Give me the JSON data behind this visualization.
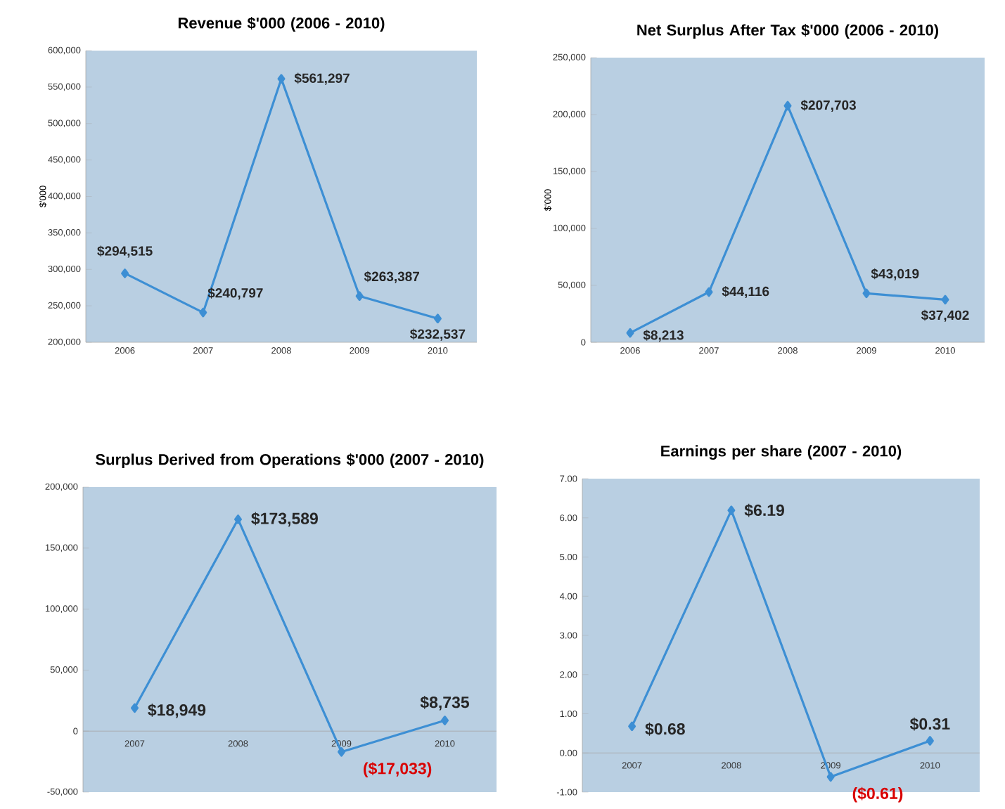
{
  "chart_data": [
    {
      "type": "line",
      "title": "Revenue $'000 (2006 - 2010)",
      "ylabel": "$'000",
      "categories": [
        "2006",
        "2007",
        "2008",
        "2009",
        "2010"
      ],
      "values": [
        294515,
        240797,
        561297,
        263387,
        232537
      ],
      "value_labels": [
        "$294,515",
        "$240,797",
        "$561,297",
        "$263,387",
        "$232,537"
      ],
      "color": "#3d8fd4",
      "marker": "diamond",
      "ylim": [
        200000,
        600000
      ],
      "yticks": [
        {
          "value": 200000,
          "label": "200,000"
        },
        {
          "value": 250000,
          "label": "250,000"
        },
        {
          "value": 300000,
          "label": "300,000"
        },
        {
          "value": 350000,
          "label": "350,000"
        },
        {
          "value": 400000,
          "label": "400,000"
        },
        {
          "value": 450000,
          "label": "450,000"
        },
        {
          "value": 500000,
          "label": "500,000"
        },
        {
          "value": 550000,
          "label": "550,000"
        },
        {
          "value": 600000,
          "label": "600,000"
        }
      ]
    },
    {
      "type": "line",
      "title": "Net Surplus After Tax $'000 (2006 - 2010)",
      "ylabel": "$'000",
      "categories": [
        "2006",
        "2007",
        "2008",
        "2009",
        "2010"
      ],
      "values": [
        8213,
        44116,
        207703,
        43019,
        37402
      ],
      "value_labels": [
        "$8,213",
        "$44,116",
        "$207,703",
        "$43,019",
        "$37,402"
      ],
      "color": "#3d8fd4",
      "marker": "diamond",
      "ylim": [
        0,
        250000
      ],
      "yticks": [
        0,
        {
          "value": 50000,
          "label": "50,000"
        },
        {
          "value": 100000,
          "label": "100,000"
        },
        {
          "value": 150000,
          "label": "150,000"
        },
        {
          "value": 200000,
          "label": "200,000"
        },
        {
          "value": 250000,
          "label": "250,000"
        }
      ]
    },
    {
      "type": "line",
      "title": "Surplus Derived from Operations $'000 (2007 - 2010)",
      "categories": [
        "2007",
        "2008",
        "2009",
        "2010"
      ],
      "values": [
        18949,
        173589,
        -17033,
        8735
      ],
      "value_labels": [
        "$18,949",
        "$173,589",
        "($17,033)",
        "$8,735"
      ],
      "color": "#3d8fd4",
      "marker": "diamond",
      "ylim": [
        -50000,
        200000
      ],
      "yticks": [
        {
          "value": -50000,
          "label": "-50,000"
        },
        0,
        {
          "value": 50000,
          "label": "50,000"
        },
        {
          "value": 100000,
          "label": "100,000"
        },
        {
          "value": 150000,
          "label": "150,000"
        },
        {
          "value": 200000,
          "label": "200,000"
        }
      ]
    },
    {
      "type": "line",
      "title": "Earnings per share (2007 - 2010)",
      "categories": [
        "2007",
        "2008",
        "2009",
        "2010"
      ],
      "values": [
        0.68,
        6.19,
        -0.61,
        0.31
      ],
      "value_labels": [
        "$0.68",
        "$6.19",
        "($0.61)",
        "$0.31"
      ],
      "color": "#3d8fd4",
      "marker": "diamond",
      "ylim": [
        -1,
        7
      ],
      "yticks": [
        {
          "value": -1,
          "label": "-1.00"
        },
        {
          "value": 0,
          "label": "0.00"
        },
        {
          "value": 1,
          "label": "1.00"
        },
        {
          "value": 2,
          "label": "2.00"
        },
        {
          "value": 3,
          "label": "3.00"
        },
        {
          "value": 4,
          "label": "4.00"
        },
        {
          "value": 5,
          "label": "5.00"
        },
        {
          "value": 6,
          "label": "6.00"
        },
        {
          "value": 7,
          "label": "7.00"
        }
      ]
    }
  ]
}
